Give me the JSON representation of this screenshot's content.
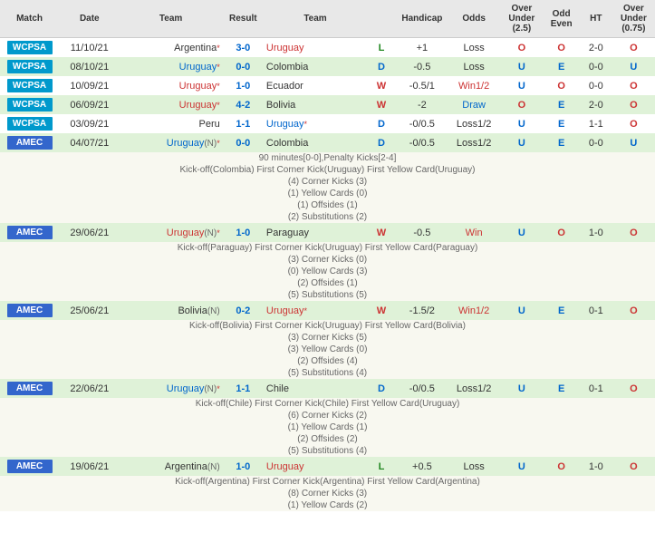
{
  "headers": [
    "Match",
    "Date",
    "Team",
    "Result",
    "Team",
    "",
    "Handicap",
    "Odds",
    "Over Under (2.5)",
    "Odd Even",
    "HT",
    "Over Under (0.75)"
  ],
  "rows": [
    {
      "rowClass": "row-white",
      "tag": "WCPSA",
      "tagClass": "wcpsa",
      "date": "11/10/21",
      "team1": "Argentina",
      "t1Class": "team-dark",
      "t1Star": true,
      "t1N": false,
      "score": "3-0",
      "team2": "Uruguay",
      "t2Class": "team-red",
      "t2Star": false,
      "t2N": false,
      "res": "L",
      "resClass": "res-l",
      "handicap": "+1",
      "odds": "Loss",
      "oddsClass": "odds-dark",
      "ou25": "O",
      "ou25Class": "ou-o",
      "oe": "O",
      "oeClass": "oe-o",
      "ht": "2-0",
      "ou075": "O",
      "ou075Class": "ou-o",
      "details": null
    },
    {
      "rowClass": "row-green",
      "tag": "WCPSA",
      "tagClass": "wcpsa",
      "date": "08/10/21",
      "team1": "Uruguay",
      "t1Class": "team-blue",
      "t1Star": true,
      "t1N": false,
      "score": "0-0",
      "team2": "Colombia",
      "t2Class": "team-dark",
      "t2Star": false,
      "t2N": false,
      "res": "D",
      "resClass": "res-d",
      "handicap": "-0.5",
      "odds": "Loss",
      "oddsClass": "odds-dark",
      "ou25": "U",
      "ou25Class": "ou-u",
      "oe": "E",
      "oeClass": "oe-e",
      "ht": "0-0",
      "ou075": "U",
      "ou075Class": "ou-u",
      "details": null
    },
    {
      "rowClass": "row-white",
      "tag": "WCPSA",
      "tagClass": "wcpsa",
      "date": "10/09/21",
      "team1": "Uruguay",
      "t1Class": "team-red",
      "t1Star": true,
      "t1N": false,
      "score": "1-0",
      "team2": "Ecuador",
      "t2Class": "team-dark",
      "t2Star": false,
      "t2N": false,
      "res": "W",
      "resClass": "res-w",
      "handicap": "-0.5/1",
      "odds": "Win1/2",
      "oddsClass": "odds-red",
      "ou25": "U",
      "ou25Class": "ou-u",
      "oe": "O",
      "oeClass": "oe-o",
      "ht": "0-0",
      "ou075": "O",
      "ou075Class": "ou-o",
      "details": null
    },
    {
      "rowClass": "row-green",
      "tag": "WCPSA",
      "tagClass": "wcpsa",
      "date": "06/09/21",
      "team1": "Uruguay",
      "t1Class": "team-red",
      "t1Star": true,
      "t1N": false,
      "score": "4-2",
      "team2": "Bolivia",
      "t2Class": "team-dark",
      "t2Star": false,
      "t2N": false,
      "res": "W",
      "resClass": "res-w",
      "handicap": "-2",
      "odds": "Draw",
      "oddsClass": "odds-blue",
      "ou25": "O",
      "ou25Class": "ou-o",
      "oe": "E",
      "oeClass": "oe-e",
      "ht": "2-0",
      "ou075": "O",
      "ou075Class": "ou-o",
      "details": null
    },
    {
      "rowClass": "row-white",
      "tag": "WCPSA",
      "tagClass": "wcpsa",
      "date": "03/09/21",
      "team1": "Peru",
      "t1Class": "team-dark",
      "t1Star": false,
      "t1N": false,
      "score": "1-1",
      "team2": "Uruguay",
      "t2Class": "team-blue",
      "t2Star": true,
      "t2N": false,
      "res": "D",
      "resClass": "res-d",
      "handicap": "-0/0.5",
      "odds": "Loss1/2",
      "oddsClass": "odds-dark",
      "ou25": "U",
      "ou25Class": "ou-u",
      "oe": "E",
      "oeClass": "oe-e",
      "ht": "1-1",
      "ou075": "O",
      "ou075Class": "ou-o",
      "details": null
    },
    {
      "rowClass": "row-green",
      "tag": "AMEC",
      "tagClass": "amec",
      "date": "04/07/21",
      "team1": "Uruguay",
      "t1Class": "team-blue",
      "t1Star": true,
      "t1N": true,
      "score": "0-0",
      "team2": "Colombia",
      "t2Class": "team-dark",
      "t2Star": false,
      "t2N": false,
      "res": "D",
      "resClass": "res-d",
      "handicap": "-0/0.5",
      "odds": "Loss1/2",
      "oddsClass": "odds-dark",
      "ou25": "U",
      "ou25Class": "ou-u",
      "oe": "E",
      "oeClass": "oe-e",
      "ht": "0-0",
      "ou075": "U",
      "ou075Class": "ou-u",
      "details": [
        "90 minutes[0-0],Penalty Kicks[2-4]",
        "Kick-off(Colombia)  First Corner Kick(Uruguay)  First Yellow Card(Uruguay)",
        "(4) Corner Kicks (3)",
        "(1) Yellow Cards (0)",
        "(1) Offsides (1)",
        "(2) Substitutions (2)"
      ]
    },
    {
      "rowClass": "row-green",
      "tag": "AMEC",
      "tagClass": "amec",
      "date": "29/06/21",
      "team1": "Uruguay",
      "t1Class": "team-red",
      "t1Star": true,
      "t1N": true,
      "score": "1-0",
      "team2": "Paraguay",
      "t2Class": "team-dark",
      "t2Star": false,
      "t2N": false,
      "res": "W",
      "resClass": "res-w",
      "handicap": "-0.5",
      "odds": "Win",
      "oddsClass": "odds-red",
      "ou25": "U",
      "ou25Class": "ou-u",
      "oe": "O",
      "oeClass": "oe-o",
      "ht": "1-0",
      "ou075": "O",
      "ou075Class": "ou-o",
      "details": [
        "Kick-off(Paraguay)  First Corner Kick(Uruguay)  First Yellow Card(Paraguay)",
        "(3) Corner Kicks (0)",
        "(0) Yellow Cards (3)",
        "(2) Offsides (1)",
        "(5) Substitutions (5)"
      ]
    },
    {
      "rowClass": "row-green",
      "tag": "AMEC",
      "tagClass": "amec",
      "date": "25/06/21",
      "team1": "Bolivia",
      "t1Class": "team-dark",
      "t1Star": false,
      "t1N": true,
      "score": "0-2",
      "team2": "Uruguay",
      "t2Class": "team-red",
      "t2Star": true,
      "t2N": false,
      "res": "W",
      "resClass": "res-w",
      "handicap": "-1.5/2",
      "odds": "Win1/2",
      "oddsClass": "odds-red",
      "ou25": "U",
      "ou25Class": "ou-u",
      "oe": "E",
      "oeClass": "oe-e",
      "ht": "0-1",
      "ou075": "O",
      "ou075Class": "ou-o",
      "details": [
        "Kick-off(Bolivia)  First Corner Kick(Uruguay)  First Yellow Card(Bolivia)",
        "(3) Corner Kicks (5)",
        "(3) Yellow Cards (0)",
        "(2) Offsides (4)",
        "(5) Substitutions (4)"
      ]
    },
    {
      "rowClass": "row-green",
      "tag": "AMEC",
      "tagClass": "amec",
      "date": "22/06/21",
      "team1": "Uruguay",
      "t1Class": "team-blue",
      "t1Star": true,
      "t1N": true,
      "score": "1-1",
      "team2": "Chile",
      "t2Class": "team-dark",
      "t2Star": false,
      "t2N": false,
      "res": "D",
      "resClass": "res-d",
      "handicap": "-0/0.5",
      "odds": "Loss1/2",
      "oddsClass": "odds-dark",
      "ou25": "U",
      "ou25Class": "ou-u",
      "oe": "E",
      "oeClass": "oe-e",
      "ht": "0-1",
      "ou075": "O",
      "ou075Class": "ou-o",
      "details": [
        "Kick-off(Chile)  First Corner Kick(Chile)  First Yellow Card(Uruguay)",
        "(6) Corner Kicks (2)",
        "(1) Yellow Cards (1)",
        "(2) Offsides (2)",
        "(5) Substitutions (4)"
      ]
    },
    {
      "rowClass": "row-green",
      "tag": "AMEC",
      "tagClass": "amec",
      "date": "19/06/21",
      "team1": "Argentina",
      "t1Class": "team-dark",
      "t1Star": false,
      "t1N": true,
      "score": "1-0",
      "team2": "Uruguay",
      "t2Class": "team-red",
      "t2Star": false,
      "t2N": false,
      "res": "L",
      "resClass": "res-l",
      "handicap": "+0.5",
      "odds": "Loss",
      "oddsClass": "odds-dark",
      "ou25": "U",
      "ou25Class": "ou-u",
      "oe": "O",
      "oeClass": "oe-o",
      "ht": "1-0",
      "ou075": "O",
      "ou075Class": "ou-o",
      "details": [
        "Kick-off(Argentina)  First Corner Kick(Argentina)  First Yellow Card(Argentina)",
        "(8) Corner Kicks (3)",
        "(1) Yellow Cards (2)"
      ]
    }
  ]
}
